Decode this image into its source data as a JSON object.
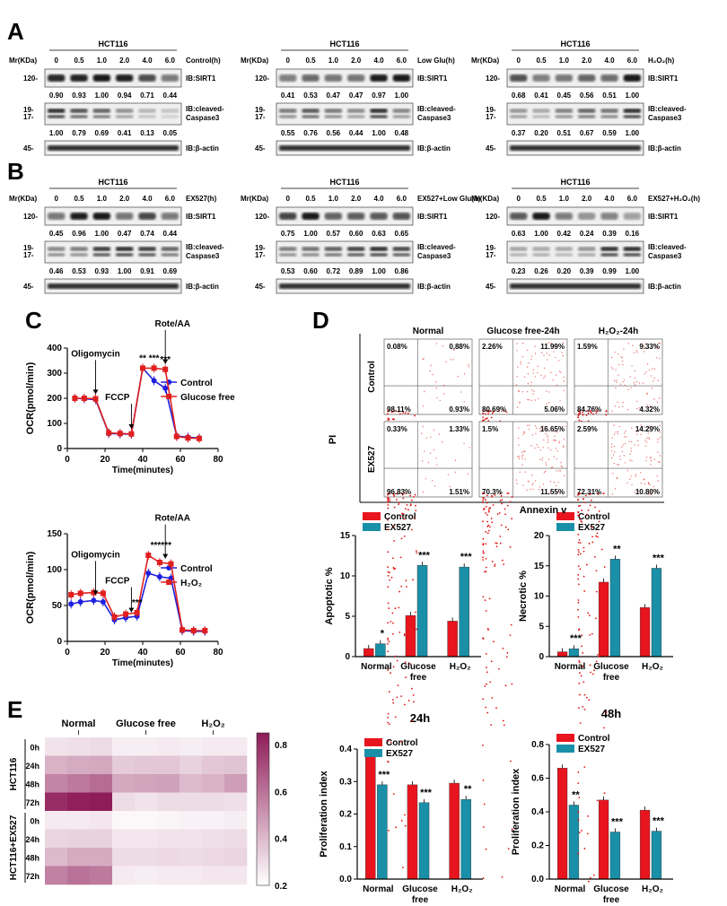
{
  "panels": {
    "A": "A",
    "B": "B",
    "C": "C",
    "D": "D",
    "E": "E"
  },
  "blots": {
    "cell_line": "HCT116",
    "mr_label": "Mr(KDa)",
    "times": [
      "0",
      "0.5",
      "1.0",
      "2.0",
      "4.0",
      "6.0"
    ],
    "marker_sirt1": "120-",
    "marker_casp": [
      "19-",
      "17-"
    ],
    "marker_actin": "45-",
    "ib_sirt1": "IB:SIRT1",
    "ib_casp": [
      "IB:cleaved-",
      "Caspase3"
    ],
    "ib_actin": "IB:β-actin",
    "rowA": [
      {
        "condition": "Control(h)",
        "sirt1": [
          "0.90",
          "0.93",
          "1.00",
          "0.94",
          "0.71",
          "0.44"
        ],
        "casp": [
          "1.00",
          "0.79",
          "0.69",
          "0.41",
          "0.13",
          "0.05"
        ]
      },
      {
        "condition": "Low Glu(h)",
        "sirt1": [
          "0.41",
          "0.53",
          "0.47",
          "0.47",
          "0.97",
          "1.00"
        ],
        "casp": [
          "0.55",
          "0.76",
          "0.56",
          "0.44",
          "1.00",
          "0.48"
        ]
      },
      {
        "condition": "H₂O₂(h)",
        "sirt1": [
          "0.68",
          "0.41",
          "0.45",
          "0.56",
          "0.51",
          "1.00"
        ],
        "casp": [
          "0.37",
          "0.20",
          "0.51",
          "0.67",
          "0.59",
          "1.00"
        ]
      }
    ],
    "rowB": [
      {
        "condition": "EX527(h)",
        "sirt1": [
          "0.45",
          "0.96",
          "1.00",
          "0.47",
          "0.74",
          "0.44"
        ],
        "casp": [
          "0.46",
          "0.53",
          "0.93",
          "1.00",
          "0.91",
          "0.69"
        ]
      },
      {
        "condition": "EX527+Low Glu(h)",
        "sirt1": [
          "0.75",
          "1.00",
          "0.57",
          "0.60",
          "0.63",
          "0.65"
        ],
        "casp": [
          "0.53",
          "0.60",
          "0.72",
          "0.89",
          "1.00",
          "0.86"
        ]
      },
      {
        "condition": "EX527+H₂O₂(h)",
        "sirt1": [
          "0.63",
          "1.00",
          "0.42",
          "0.24",
          "0.39",
          "0.16"
        ],
        "casp": [
          "0.23",
          "0.26",
          "0.20",
          "0.39",
          "0.99",
          "1.00"
        ]
      }
    ]
  },
  "chart_data": [
    {
      "type": "line",
      "id": "ocr_glucose",
      "xlabel": "Time(minutes)",
      "ylabel": "OCR(pmol/min)",
      "xlim": [
        0,
        80
      ],
      "ylim": [
        0,
        400
      ],
      "xticks": [
        0,
        20,
        40,
        60,
        80
      ],
      "yticks": [
        0,
        100,
        200,
        300,
        400
      ],
      "annotations": [
        "Oligomycin",
        "FCCP",
        "Rote/AA"
      ],
      "stars": [
        "**",
        "***",
        "***"
      ],
      "series": [
        {
          "name": "Control",
          "color": "#1f1fe0",
          "x": [
            4,
            9,
            15,
            22,
            28,
            34,
            40,
            46,
            52,
            58,
            64,
            70
          ],
          "y": [
            200,
            198,
            195,
            60,
            58,
            57,
            320,
            270,
            240,
            50,
            45,
            42
          ]
        },
        {
          "name": "Glucose free",
          "color": "#e01f1f",
          "x": [
            4,
            9,
            15,
            22,
            28,
            34,
            40,
            46,
            52,
            58,
            64,
            70
          ],
          "y": [
            200,
            200,
            198,
            62,
            60,
            58,
            320,
            320,
            315,
            48,
            42,
            40
          ]
        }
      ]
    },
    {
      "type": "line",
      "id": "ocr_h2o2",
      "xlabel": "Time(minutes)",
      "ylabel": "OCR(pmol/min)",
      "xlim": [
        0,
        80
      ],
      "ylim": [
        0,
        150
      ],
      "xticks": [
        0,
        20,
        40,
        60,
        80
      ],
      "yticks": [
        0,
        50,
        100,
        150
      ],
      "annotations": [
        "Oligomycin",
        "FCCP",
        "Rote/AA"
      ],
      "stars": [
        "***",
        "******"
      ],
      "series": [
        {
          "name": "Control",
          "color": "#1f1fe0",
          "x": [
            2,
            7,
            14,
            19,
            25,
            31,
            37,
            43,
            49,
            55,
            61,
            67,
            73
          ],
          "y": [
            52,
            55,
            57,
            55,
            30,
            33,
            35,
            95,
            90,
            88,
            15,
            14,
            14
          ]
        },
        {
          "name": "H₂O₂",
          "color": "#e01f1f",
          "x": [
            2,
            7,
            14,
            19,
            25,
            31,
            37,
            43,
            49,
            55,
            61,
            67,
            73
          ],
          "y": [
            65,
            67,
            68,
            67,
            34,
            38,
            40,
            120,
            110,
            108,
            16,
            15,
            15
          ]
        }
      ]
    },
    {
      "type": "bar",
      "id": "apoptotic",
      "categories": [
        "Normal",
        "Glucose free",
        "H₂O₂"
      ],
      "ylabel": "Apoptotic %",
      "ylim": [
        0,
        15
      ],
      "yticks": [
        0,
        5,
        10,
        15
      ],
      "series": [
        {
          "name": "Control",
          "color": "#e8141e",
          "values": [
            1.0,
            5.1,
            4.4
          ]
        },
        {
          "name": "EX527",
          "color": "#1a8fa8",
          "values": [
            1.6,
            11.3,
            11.1
          ]
        }
      ],
      "stars": [
        "*",
        "***",
        "***"
      ]
    },
    {
      "type": "bar",
      "id": "necrotic",
      "categories": [
        "Normal",
        "Glucose free",
        "H₂O₂"
      ],
      "ylabel": "Necrotic %",
      "ylim": [
        0,
        20
      ],
      "yticks": [
        0,
        5,
        10,
        15,
        20
      ],
      "series": [
        {
          "name": "Control",
          "color": "#e8141e",
          "values": [
            0.8,
            12.3,
            8.1
          ]
        },
        {
          "name": "EX527",
          "color": "#1a8fa8",
          "values": [
            1.3,
            16.1,
            14.6
          ]
        }
      ],
      "stars": [
        "***",
        "**",
        "***"
      ]
    },
    {
      "type": "bar",
      "id": "prolif_24h",
      "title": "24h",
      "categories": [
        "Normal",
        "Glucose free",
        "H₂O₂"
      ],
      "ylabel": "Proliferation index",
      "ylim": [
        0,
        0.4
      ],
      "yticks": [
        0.0,
        0.1,
        0.2,
        0.3,
        0.4
      ],
      "series": [
        {
          "name": "Control",
          "color": "#e8141e",
          "values": [
            0.39,
            0.29,
            0.295
          ]
        },
        {
          "name": "EX527",
          "color": "#1a8fa8",
          "values": [
            0.29,
            0.235,
            0.245
          ]
        }
      ],
      "stars": [
        "***",
        "***",
        "**"
      ]
    },
    {
      "type": "bar",
      "id": "prolif_48h",
      "title": "48h",
      "categories": [
        "Normal",
        "Glucose free",
        "H₂O₂"
      ],
      "ylabel": "Proliferation index",
      "ylim": [
        0,
        0.8
      ],
      "yticks": [
        0.0,
        0.2,
        0.4,
        0.6,
        0.8
      ],
      "series": [
        {
          "name": "Control",
          "color": "#e8141e",
          "values": [
            0.66,
            0.47,
            0.41
          ]
        },
        {
          "name": "EX527",
          "color": "#1a8fa8",
          "values": [
            0.44,
            0.28,
            0.285
          ]
        }
      ],
      "stars": [
        "**",
        "***",
        "***"
      ]
    },
    {
      "type": "heatmap",
      "id": "heatmap",
      "columns": [
        "Normal",
        "Glucose free",
        "H₂O₂"
      ],
      "groups": [
        {
          "name": "HCT116",
          "rows": [
            "0h",
            "24h",
            "48h",
            "72h"
          ]
        },
        {
          "name": "HCT116+EX527",
          "rows": [
            "0h",
            "24h",
            "48h",
            "72h"
          ]
        }
      ],
      "scale_ticks": [
        "0.2",
        "0.4",
        "0.6",
        "0.8"
      ],
      "values": [
        [
          0.28,
          0.29,
          0.3,
          0.25,
          0.25,
          0.26,
          0.25,
          0.26,
          0.26
        ],
        [
          0.42,
          0.44,
          0.45,
          0.35,
          0.36,
          0.36,
          0.33,
          0.36,
          0.37
        ],
        [
          0.55,
          0.58,
          0.62,
          0.45,
          0.46,
          0.47,
          0.4,
          0.42,
          0.48
        ],
        [
          0.8,
          0.84,
          0.85,
          0.3,
          0.28,
          0.3,
          0.3,
          0.3,
          0.29
        ],
        [
          0.26,
          0.26,
          0.27,
          0.22,
          0.22,
          0.23,
          0.24,
          0.24,
          0.25
        ],
        [
          0.32,
          0.33,
          0.33,
          0.27,
          0.27,
          0.28,
          0.28,
          0.29,
          0.3
        ],
        [
          0.4,
          0.44,
          0.44,
          0.3,
          0.3,
          0.31,
          0.3,
          0.31,
          0.32
        ],
        [
          0.56,
          0.6,
          0.58,
          0.26,
          0.25,
          0.26,
          0.26,
          0.27,
          0.27
        ]
      ]
    }
  ],
  "flow": {
    "y_label": "PI",
    "x_label": "Annexin v",
    "col_titles": [
      "Normal",
      "Glucose free-24h",
      "H₂O₂-24h"
    ],
    "row_titles": [
      "Control",
      "EX527"
    ],
    "quadrants": [
      [
        [
          "0.08%",
          "0.88%",
          "98.11%",
          "0.93%"
        ],
        [
          "2.26%",
          "11.99%",
          "80.69%",
          "5.06%"
        ],
        [
          "1.59%",
          "9.33%",
          "84.76%",
          "4.32%"
        ]
      ],
      [
        [
          "0.33%",
          "1.33%",
          "96.83%",
          "1.51%"
        ],
        [
          "1.5%",
          "16.65%",
          "70.3%",
          "11.55%"
        ],
        [
          "2.59%",
          "14.29%",
          "72.31%",
          "10.80%"
        ]
      ]
    ]
  }
}
